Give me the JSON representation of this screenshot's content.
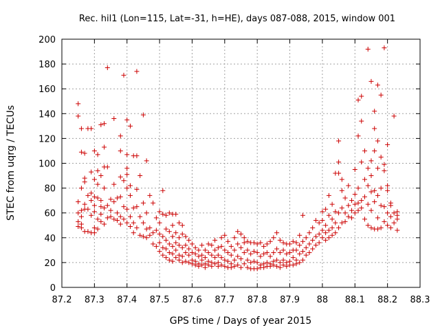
{
  "chart_data": {
    "type": "scatter",
    "title": "Rec. hil1 (Lon=115, Lat=-31, h=HE), days 087-088, 2015, window 001",
    "xlabel": "GPS time / Days of year 2015",
    "ylabel": "STEC from uqrg / TECUs",
    "xlim": [
      87.2,
      88.3
    ],
    "ylim": [
      0,
      200
    ],
    "x_ticks": [
      87.2,
      87.3,
      87.4,
      87.5,
      87.6,
      87.7,
      87.8,
      87.9,
      88,
      88.1,
      88.2,
      88.3
    ],
    "x_tick_labels": [
      "87.2",
      "87.3",
      "87.4",
      "87.5",
      "87.6",
      "87.7",
      "87.8",
      "87.9",
      "88",
      "88.1",
      "88.2",
      "88.3"
    ],
    "y_ticks": [
      0,
      20,
      40,
      60,
      80,
      100,
      120,
      140,
      160,
      180,
      200
    ],
    "y_tick_labels": [
      "0",
      "20",
      "40",
      "60",
      "80",
      "100",
      "120",
      "140",
      "160",
      "180",
      "200"
    ],
    "grid": true,
    "marker": "+",
    "color": "#cc0000",
    "points": [
      [
        87.25,
        148
      ],
      [
        87.25,
        138
      ],
      [
        87.25,
        69
      ],
      [
        87.25,
        60
      ],
      [
        87.25,
        53
      ],
      [
        87.25,
        49
      ],
      [
        87.26,
        128
      ],
      [
        87.26,
        109
      ],
      [
        87.26,
        80
      ],
      [
        87.26,
        62
      ],
      [
        87.26,
        57
      ],
      [
        87.26,
        51
      ],
      [
        87.26,
        48
      ],
      [
        87.27,
        108
      ],
      [
        87.27,
        88
      ],
      [
        87.27,
        85
      ],
      [
        87.27,
        67
      ],
      [
        87.27,
        63
      ],
      [
        87.27,
        45
      ],
      [
        87.28,
        128
      ],
      [
        87.28,
        74
      ],
      [
        87.28,
        63
      ],
      [
        87.28,
        45
      ],
      [
        87.29,
        128
      ],
      [
        87.29,
        93
      ],
      [
        87.29,
        76
      ],
      [
        87.29,
        70
      ],
      [
        87.29,
        58
      ],
      [
        87.29,
        44
      ],
      [
        87.3,
        110
      ],
      [
        87.3,
        87
      ],
      [
        87.3,
        73
      ],
      [
        87.3,
        66
      ],
      [
        87.3,
        61
      ],
      [
        87.3,
        48
      ],
      [
        87.3,
        44
      ],
      [
        87.31,
        107
      ],
      [
        87.31,
        94
      ],
      [
        87.31,
        83
      ],
      [
        87.31,
        72
      ],
      [
        87.31,
        55
      ],
      [
        87.31,
        47
      ],
      [
        87.32,
        131
      ],
      [
        87.32,
        90
      ],
      [
        87.32,
        70
      ],
      [
        87.32,
        65
      ],
      [
        87.32,
        59
      ],
      [
        87.32,
        53
      ],
      [
        87.33,
        132
      ],
      [
        87.33,
        113
      ],
      [
        87.33,
        97
      ],
      [
        87.33,
        80
      ],
      [
        87.33,
        64
      ],
      [
        87.33,
        51
      ],
      [
        87.34,
        177
      ],
      [
        87.34,
        97
      ],
      [
        87.34,
        66
      ],
      [
        87.34,
        56
      ],
      [
        87.35,
        71
      ],
      [
        87.35,
        62
      ],
      [
        87.35,
        57
      ],
      [
        87.36,
        136
      ],
      [
        87.36,
        83
      ],
      [
        87.36,
        69
      ],
      [
        87.36,
        55
      ],
      [
        87.37,
        72
      ],
      [
        87.37,
        60
      ],
      [
        87.37,
        54
      ],
      [
        87.38,
        122
      ],
      [
        87.38,
        110
      ],
      [
        87.38,
        89
      ],
      [
        87.38,
        73
      ],
      [
        87.38,
        57
      ],
      [
        87.38,
        51
      ],
      [
        87.39,
        171
      ],
      [
        87.39,
        86
      ],
      [
        87.39,
        65
      ],
      [
        87.39,
        55
      ],
      [
        87.4,
        135
      ],
      [
        87.4,
        107
      ],
      [
        87.4,
        96
      ],
      [
        87.4,
        91
      ],
      [
        87.4,
        80
      ],
      [
        87.4,
        63
      ],
      [
        87.4,
        52
      ],
      [
        87.41,
        130
      ],
      [
        87.41,
        82
      ],
      [
        87.41,
        74
      ],
      [
        87.41,
        57
      ],
      [
        87.41,
        49
      ],
      [
        87.42,
        106
      ],
      [
        87.42,
        64
      ],
      [
        87.42,
        52
      ],
      [
        87.42,
        44
      ],
      [
        87.43,
        174
      ],
      [
        87.43,
        106
      ],
      [
        87.43,
        79
      ],
      [
        87.43,
        65
      ],
      [
        87.43,
        48
      ],
      [
        87.44,
        90
      ],
      [
        87.44,
        57
      ],
      [
        87.44,
        42
      ],
      [
        87.45,
        139
      ],
      [
        87.45,
        68
      ],
      [
        87.45,
        52
      ],
      [
        87.45,
        41
      ],
      [
        87.46,
        102
      ],
      [
        87.46,
        60
      ],
      [
        87.46,
        47
      ],
      [
        87.46,
        40
      ],
      [
        87.47,
        74
      ],
      [
        87.47,
        48
      ],
      [
        87.47,
        42
      ],
      [
        87.48,
        68
      ],
      [
        87.48,
        44
      ],
      [
        87.48,
        35
      ],
      [
        87.49,
        56
      ],
      [
        87.49,
        46
      ],
      [
        87.49,
        33
      ],
      [
        87.5,
        61
      ],
      [
        87.5,
        52
      ],
      [
        87.5,
        43
      ],
      [
        87.5,
        36
      ],
      [
        87.5,
        29
      ],
      [
        87.51,
        78
      ],
      [
        87.51,
        59
      ],
      [
        87.51,
        41
      ],
      [
        87.51,
        32
      ],
      [
        87.51,
        26
      ],
      [
        87.52,
        58
      ],
      [
        87.52,
        47
      ],
      [
        87.52,
        38
      ],
      [
        87.52,
        31
      ],
      [
        87.52,
        24
      ],
      [
        87.53,
        60
      ],
      [
        87.53,
        45
      ],
      [
        87.53,
        35
      ],
      [
        87.53,
        28
      ],
      [
        87.53,
        22
      ],
      [
        87.54,
        59
      ],
      [
        87.54,
        50
      ],
      [
        87.54,
        41
      ],
      [
        87.54,
        33
      ],
      [
        87.54,
        27
      ],
      [
        87.54,
        21
      ],
      [
        87.55,
        59
      ],
      [
        87.55,
        44
      ],
      [
        87.55,
        36
      ],
      [
        87.55,
        30
      ],
      [
        87.55,
        24
      ],
      [
        87.56,
        52
      ],
      [
        87.56,
        40
      ],
      [
        87.56,
        34
      ],
      [
        87.56,
        26
      ],
      [
        87.56,
        22
      ],
      [
        87.57,
        50
      ],
      [
        87.57,
        43
      ],
      [
        87.57,
        32
      ],
      [
        87.57,
        25
      ],
      [
        87.57,
        20
      ],
      [
        87.58,
        41
      ],
      [
        87.58,
        34
      ],
      [
        87.58,
        28
      ],
      [
        87.58,
        21
      ],
      [
        87.59,
        38
      ],
      [
        87.59,
        31
      ],
      [
        87.59,
        26
      ],
      [
        87.59,
        20
      ],
      [
        87.6,
        35
      ],
      [
        87.6,
        28
      ],
      [
        87.6,
        22
      ],
      [
        87.6,
        19
      ],
      [
        87.61,
        32
      ],
      [
        87.61,
        27
      ],
      [
        87.61,
        21
      ],
      [
        87.61,
        18
      ],
      [
        87.62,
        30
      ],
      [
        87.62,
        25
      ],
      [
        87.62,
        19
      ],
      [
        87.62,
        17
      ],
      [
        87.63,
        34
      ],
      [
        87.63,
        26
      ],
      [
        87.63,
        22
      ],
      [
        87.63,
        18
      ],
      [
        87.64,
        30
      ],
      [
        87.64,
        24
      ],
      [
        87.64,
        19
      ],
      [
        87.64,
        16
      ],
      [
        87.65,
        35
      ],
      [
        87.65,
        28
      ],
      [
        87.65,
        21
      ],
      [
        87.65,
        18
      ],
      [
        87.66,
        34
      ],
      [
        87.66,
        26
      ],
      [
        87.66,
        20
      ],
      [
        87.66,
        17
      ],
      [
        87.67,
        38
      ],
      [
        87.67,
        30
      ],
      [
        87.67,
        24
      ],
      [
        87.67,
        19
      ],
      [
        87.68,
        32
      ],
      [
        87.68,
        26
      ],
      [
        87.68,
        20
      ],
      [
        87.68,
        17
      ],
      [
        87.69,
        40
      ],
      [
        87.69,
        33
      ],
      [
        87.69,
        24
      ],
      [
        87.69,
        18
      ],
      [
        87.7,
        42
      ],
      [
        87.7,
        30
      ],
      [
        87.7,
        22
      ],
      [
        87.7,
        17
      ],
      [
        87.71,
        37
      ],
      [
        87.71,
        28
      ],
      [
        87.71,
        21
      ],
      [
        87.71,
        16
      ],
      [
        87.72,
        33
      ],
      [
        87.72,
        26
      ],
      [
        87.72,
        19
      ],
      [
        87.72,
        16
      ],
      [
        87.73,
        40
      ],
      [
        87.73,
        30
      ],
      [
        87.73,
        22
      ],
      [
        87.73,
        17
      ],
      [
        87.74,
        45
      ],
      [
        87.74,
        35
      ],
      [
        87.74,
        25
      ],
      [
        87.74,
        18
      ],
      [
        87.75,
        43
      ],
      [
        87.75,
        32
      ],
      [
        87.75,
        23
      ],
      [
        87.75,
        16
      ],
      [
        87.76,
        40
      ],
      [
        87.76,
        36
      ],
      [
        87.76,
        28
      ],
      [
        87.76,
        19
      ],
      [
        87.77,
        37
      ],
      [
        87.77,
        30
      ],
      [
        87.77,
        22
      ],
      [
        87.77,
        16
      ],
      [
        87.78,
        36
      ],
      [
        87.78,
        27
      ],
      [
        87.78,
        20
      ],
      [
        87.78,
        15
      ],
      [
        87.79,
        36
      ],
      [
        87.79,
        29
      ],
      [
        87.79,
        21
      ],
      [
        87.79,
        15
      ],
      [
        87.8,
        35
      ],
      [
        87.8,
        28
      ],
      [
        87.8,
        20
      ],
      [
        87.8,
        15
      ],
      [
        87.81,
        36
      ],
      [
        87.81,
        25
      ],
      [
        87.81,
        18
      ],
      [
        87.81,
        16
      ],
      [
        87.82,
        33
      ],
      [
        87.82,
        27
      ],
      [
        87.82,
        19
      ],
      [
        87.82,
        16
      ],
      [
        87.83,
        35
      ],
      [
        87.83,
        28
      ],
      [
        87.83,
        20
      ],
      [
        87.83,
        17
      ],
      [
        87.84,
        37
      ],
      [
        87.84,
        25
      ],
      [
        87.84,
        19
      ],
      [
        87.84,
        17
      ],
      [
        87.85,
        40
      ],
      [
        87.85,
        28
      ],
      [
        87.85,
        21
      ],
      [
        87.85,
        18
      ],
      [
        87.86,
        44
      ],
      [
        87.86,
        31
      ],
      [
        87.86,
        22
      ],
      [
        87.86,
        17
      ],
      [
        87.87,
        38
      ],
      [
        87.87,
        28
      ],
      [
        87.87,
        20
      ],
      [
        87.87,
        16
      ],
      [
        87.88,
        36
      ],
      [
        87.88,
        30
      ],
      [
        87.88,
        22
      ],
      [
        87.88,
        18
      ],
      [
        87.89,
        35
      ],
      [
        87.89,
        27
      ],
      [
        87.89,
        20
      ],
      [
        87.89,
        17
      ],
      [
        87.9,
        35
      ],
      [
        87.9,
        28
      ],
      [
        87.9,
        21
      ],
      [
        87.9,
        18
      ],
      [
        87.91,
        37
      ],
      [
        87.91,
        30
      ],
      [
        87.91,
        24
      ],
      [
        87.91,
        18
      ],
      [
        87.92,
        36
      ],
      [
        87.92,
        30
      ],
      [
        87.92,
        22
      ],
      [
        87.92,
        19
      ],
      [
        87.93,
        42
      ],
      [
        87.93,
        34
      ],
      [
        87.93,
        27
      ],
      [
        87.93,
        20
      ],
      [
        87.94,
        58
      ],
      [
        87.94,
        37
      ],
      [
        87.94,
        29
      ],
      [
        87.94,
        22
      ],
      [
        87.95,
        40
      ],
      [
        87.95,
        32
      ],
      [
        87.95,
        26
      ],
      [
        87.96,
        44
      ],
      [
        87.96,
        35
      ],
      [
        87.96,
        28
      ],
      [
        87.97,
        48
      ],
      [
        87.97,
        38
      ],
      [
        87.97,
        31
      ],
      [
        87.98,
        54
      ],
      [
        87.98,
        41
      ],
      [
        87.98,
        34
      ],
      [
        87.99,
        52
      ],
      [
        87.99,
        43
      ],
      [
        87.99,
        36
      ],
      [
        88.0,
        61
      ],
      [
        88.0,
        54
      ],
      [
        88.0,
        46
      ],
      [
        88.0,
        40
      ],
      [
        88.01,
        63
      ],
      [
        88.01,
        50
      ],
      [
        88.01,
        44
      ],
      [
        88.01,
        38
      ],
      [
        88.02,
        74
      ],
      [
        88.02,
        58
      ],
      [
        88.02,
        46
      ],
      [
        88.02,
        40
      ],
      [
        88.03,
        67
      ],
      [
        88.03,
        55
      ],
      [
        88.03,
        48
      ],
      [
        88.03,
        42
      ],
      [
        88.04,
        92
      ],
      [
        88.04,
        61
      ],
      [
        88.04,
        52
      ],
      [
        88.04,
        44
      ],
      [
        88.05,
        118
      ],
      [
        88.05,
        101
      ],
      [
        88.05,
        92
      ],
      [
        88.05,
        60
      ],
      [
        88.05,
        48
      ],
      [
        88.06,
        87
      ],
      [
        88.06,
        78
      ],
      [
        88.06,
        64
      ],
      [
        88.06,
        52
      ],
      [
        88.07,
        72
      ],
      [
        88.07,
        60
      ],
      [
        88.07,
        53
      ],
      [
        88.08,
        82
      ],
      [
        88.08,
        66
      ],
      [
        88.08,
        57
      ],
      [
        88.09,
        70
      ],
      [
        88.09,
        62
      ],
      [
        88.09,
        56
      ],
      [
        88.1,
        95
      ],
      [
        88.1,
        75
      ],
      [
        88.1,
        67
      ],
      [
        88.1,
        60
      ],
      [
        88.11,
        122
      ],
      [
        88.11,
        151
      ],
      [
        88.11,
        80
      ],
      [
        88.11,
        68
      ],
      [
        88.11,
        62
      ],
      [
        88.12,
        154
      ],
      [
        88.12,
        134
      ],
      [
        88.12,
        101
      ],
      [
        88.12,
        70
      ],
      [
        88.12,
        64
      ],
      [
        88.13,
        110
      ],
      [
        88.13,
        87
      ],
      [
        88.13,
        73
      ],
      [
        88.13,
        55
      ],
      [
        88.14,
        192
      ],
      [
        88.14,
        96
      ],
      [
        88.14,
        82
      ],
      [
        88.14,
        67
      ],
      [
        88.14,
        50
      ],
      [
        88.15,
        166
      ],
      [
        88.15,
        102
      ],
      [
        88.15,
        90
      ],
      [
        88.15,
        77
      ],
      [
        88.15,
        62
      ],
      [
        88.15,
        48
      ],
      [
        88.16,
        142
      ],
      [
        88.16,
        128
      ],
      [
        88.16,
        110
      ],
      [
        88.16,
        78
      ],
      [
        88.16,
        69
      ],
      [
        88.16,
        47
      ],
      [
        88.17,
        163
      ],
      [
        88.17,
        118
      ],
      [
        88.17,
        96
      ],
      [
        88.17,
        74
      ],
      [
        88.17,
        56
      ],
      [
        88.17,
        47
      ],
      [
        88.18,
        155
      ],
      [
        88.18,
        105
      ],
      [
        88.18,
        80
      ],
      [
        88.18,
        66
      ],
      [
        88.18,
        48
      ],
      [
        88.19,
        193
      ],
      [
        88.19,
        99
      ],
      [
        88.19,
        94
      ],
      [
        88.19,
        65
      ],
      [
        88.19,
        53
      ],
      [
        88.2,
        115
      ],
      [
        88.2,
        82
      ],
      [
        88.2,
        78
      ],
      [
        88.2,
        60
      ],
      [
        88.2,
        50
      ],
      [
        88.21,
        68
      ],
      [
        88.21,
        66
      ],
      [
        88.21,
        57
      ],
      [
        88.21,
        48
      ],
      [
        88.22,
        138
      ],
      [
        88.22,
        60
      ],
      [
        88.22,
        52
      ],
      [
        88.23,
        61
      ],
      [
        88.23,
        58
      ],
      [
        88.23,
        55
      ],
      [
        88.23,
        46
      ]
    ]
  }
}
